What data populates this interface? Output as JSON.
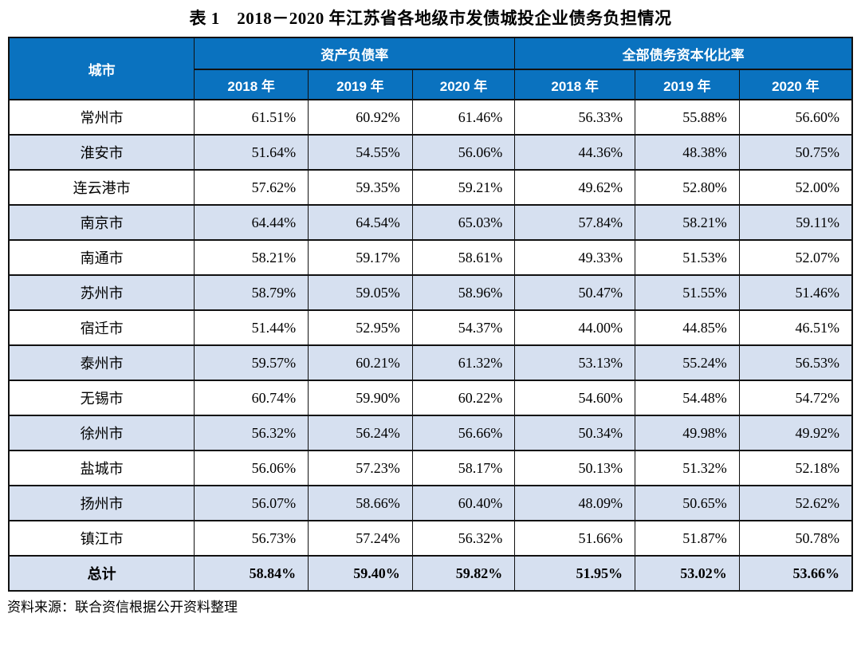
{
  "title": "表 1　2018－2020 年江苏省各地级市发债城投企业债务负担情况",
  "source_note": "资料来源：联合资信根据公开资料整理",
  "colors": {
    "header_bg": "#0a72bf",
    "header_text": "#ffffff",
    "stripe_bg": "#d6e0f0",
    "border": "#111111"
  },
  "table": {
    "header": {
      "city": "城市",
      "group_asset_liability_ratio": "资产负债率",
      "group_debt_capitalization_ratio": "全部债务资本化比率",
      "years": [
        "2018 年",
        "2019 年",
        "2020 年"
      ]
    },
    "rows": [
      {
        "city": "常州市",
        "values": [
          "61.51%",
          "60.92%",
          "61.46%",
          "56.33%",
          "55.88%",
          "56.60%"
        ]
      },
      {
        "city": "淮安市",
        "values": [
          "51.64%",
          "54.55%",
          "56.06%",
          "44.36%",
          "48.38%",
          "50.75%"
        ]
      },
      {
        "city": "连云港市",
        "values": [
          "57.62%",
          "59.35%",
          "59.21%",
          "49.62%",
          "52.80%",
          "52.00%"
        ]
      },
      {
        "city": "南京市",
        "values": [
          "64.44%",
          "64.54%",
          "65.03%",
          "57.84%",
          "58.21%",
          "59.11%"
        ]
      },
      {
        "city": "南通市",
        "values": [
          "58.21%",
          "59.17%",
          "58.61%",
          "49.33%",
          "51.53%",
          "52.07%"
        ]
      },
      {
        "city": "苏州市",
        "values": [
          "58.79%",
          "59.05%",
          "58.96%",
          "50.47%",
          "51.55%",
          "51.46%"
        ]
      },
      {
        "city": "宿迁市",
        "values": [
          "51.44%",
          "52.95%",
          "54.37%",
          "44.00%",
          "44.85%",
          "46.51%"
        ]
      },
      {
        "city": "泰州市",
        "values": [
          "59.57%",
          "60.21%",
          "61.32%",
          "53.13%",
          "55.24%",
          "56.53%"
        ]
      },
      {
        "city": "无锡市",
        "values": [
          "60.74%",
          "59.90%",
          "60.22%",
          "54.60%",
          "54.48%",
          "54.72%"
        ]
      },
      {
        "city": "徐州市",
        "values": [
          "56.32%",
          "56.24%",
          "56.66%",
          "50.34%",
          "49.98%",
          "49.92%"
        ]
      },
      {
        "city": "盐城市",
        "values": [
          "56.06%",
          "57.23%",
          "58.17%",
          "50.13%",
          "51.32%",
          "52.18%"
        ]
      },
      {
        "city": "扬州市",
        "values": [
          "56.07%",
          "58.66%",
          "60.40%",
          "48.09%",
          "50.65%",
          "52.62%"
        ]
      },
      {
        "city": "镇江市",
        "values": [
          "56.73%",
          "57.24%",
          "56.32%",
          "51.66%",
          "51.87%",
          "50.78%"
        ]
      }
    ],
    "total_row": {
      "city": "总计",
      "values": [
        "58.84%",
        "59.40%",
        "59.82%",
        "51.95%",
        "53.02%",
        "53.66%"
      ]
    }
  }
}
